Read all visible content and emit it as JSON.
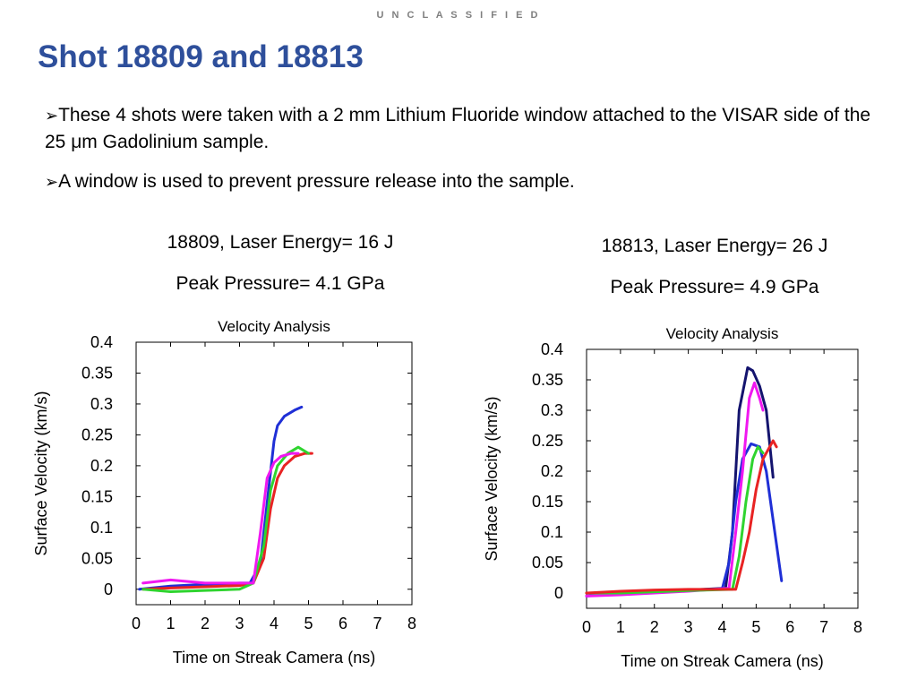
{
  "header": {
    "classification": "U N C L A S S I F I E D"
  },
  "slide": {
    "title": "Shot 18809 and 18813"
  },
  "bullets": [
    {
      "arrow": "➢",
      "text": "These 4 shots were taken with a 2 mm Lithium Fluoride window attached to the VISAR side of the 25 μm Gadolinium sample."
    },
    {
      "arrow": "➢",
      "text": "A window is used to prevent pressure release into the sample."
    }
  ],
  "captions": [
    {
      "line1": "18809, Laser Energy= 16 J",
      "line2": "Peak Pressure= 4.1 GPa"
    },
    {
      "line1": "18813, Laser Energy= 26 J",
      "line2": "Peak Pressure= 4.9 GPa"
    }
  ],
  "chart_data": [
    {
      "type": "line",
      "title": "Velocity Analysis",
      "xlabel": "Time on Streak Camera (ns)",
      "ylabel": "Surface Velocity (km/s)",
      "xlim": [
        0,
        8
      ],
      "ylim": [
        -0.025,
        0.4
      ],
      "xticks": [
        "0",
        "1",
        "2",
        "3",
        "4",
        "5",
        "6",
        "7",
        "8"
      ],
      "yticks": [
        "0.4",
        "0.35",
        "0.3",
        "0.25",
        "0.2",
        "0.15",
        "0.1",
        "0.05",
        "0"
      ],
      "grid": false,
      "series": [
        {
          "color": "#1f2fd6",
          "x": [
            0.1,
            1,
            2,
            3,
            3.3,
            3.6,
            3.8,
            4.0,
            4.1,
            4.3,
            4.6,
            4.8
          ],
          "y": [
            0.0,
            0.005,
            0.008,
            0.01,
            0.01,
            0.04,
            0.14,
            0.24,
            0.265,
            0.28,
            0.29,
            0.295
          ]
        },
        {
          "color": "#e82323",
          "x": [
            0.2,
            1,
            2,
            3,
            3.4,
            3.7,
            3.9,
            4.1,
            4.3,
            4.6,
            4.9,
            5.1
          ],
          "y": [
            0.0,
            0.002,
            0.004,
            0.006,
            0.01,
            0.05,
            0.13,
            0.18,
            0.2,
            0.215,
            0.22,
            0.22
          ]
        },
        {
          "color": "#2fd42f",
          "x": [
            0.2,
            1,
            2,
            3,
            3.4,
            3.7,
            3.9,
            4.1,
            4.4,
            4.7,
            5.0
          ],
          "y": [
            0.0,
            -0.004,
            -0.002,
            0.0,
            0.01,
            0.07,
            0.16,
            0.2,
            0.22,
            0.23,
            0.22
          ]
        },
        {
          "color": "#f018f0",
          "x": [
            0.2,
            1,
            2,
            3,
            3.4,
            3.6,
            3.8,
            4.0,
            4.2,
            4.5,
            4.7
          ],
          "y": [
            0.01,
            0.015,
            0.01,
            0.01,
            0.01,
            0.09,
            0.18,
            0.205,
            0.215,
            0.22,
            0.22
          ]
        }
      ]
    },
    {
      "type": "line",
      "title": "Velocity Analysis",
      "xlabel": "Time on Streak Camera (ns)",
      "ylabel": "Surface Velocity (km/s)",
      "xlim": [
        0,
        8
      ],
      "ylim": [
        -0.025,
        0.4
      ],
      "xticks": [
        "0",
        "1",
        "2",
        "3",
        "4",
        "5",
        "6",
        "7",
        "8"
      ],
      "yticks": [
        "0.4",
        "0.35",
        "0.3",
        "0.25",
        "0.2",
        "0.15",
        "0.1",
        "0.05",
        "0"
      ],
      "grid": false,
      "series": [
        {
          "color": "#14146e",
          "x": [
            0.0,
            1,
            2,
            3,
            4.1,
            4.3,
            4.5,
            4.75,
            4.9,
            5.1,
            5.3,
            5.5
          ],
          "y": [
            0.0,
            0.0,
            0.003,
            0.005,
            0.008,
            0.1,
            0.3,
            0.37,
            0.365,
            0.34,
            0.3,
            0.19
          ]
        },
        {
          "color": "#1f2fd6",
          "x": [
            0.0,
            1,
            2,
            3,
            4.0,
            4.2,
            4.4,
            4.6,
            4.85,
            5.1,
            5.3,
            5.5,
            5.75
          ],
          "y": [
            -0.005,
            0.0,
            0.003,
            0.005,
            0.007,
            0.05,
            0.15,
            0.22,
            0.245,
            0.24,
            0.2,
            0.12,
            0.02
          ]
        },
        {
          "color": "#f018f0",
          "x": [
            0.0,
            1,
            2,
            3,
            4.2,
            4.4,
            4.6,
            4.8,
            4.95,
            5.1,
            5.2
          ],
          "y": [
            -0.005,
            -0.003,
            0.0,
            0.003,
            0.008,
            0.1,
            0.2,
            0.32,
            0.345,
            0.32,
            0.3
          ]
        },
        {
          "color": "#2fd42f",
          "x": [
            0.0,
            1,
            2,
            3,
            4.3,
            4.5,
            4.7,
            4.9,
            5.05,
            5.2
          ],
          "y": [
            0.0,
            0.0,
            0.002,
            0.004,
            0.006,
            0.06,
            0.15,
            0.22,
            0.24,
            0.23
          ]
        },
        {
          "color": "#e82323",
          "x": [
            0.0,
            1,
            2,
            3,
            4.4,
            4.6,
            4.8,
            5.0,
            5.2,
            5.4,
            5.5,
            5.6
          ],
          "y": [
            0.0,
            0.003,
            0.005,
            0.006,
            0.006,
            0.05,
            0.1,
            0.17,
            0.22,
            0.24,
            0.25,
            0.24
          ]
        }
      ]
    }
  ]
}
